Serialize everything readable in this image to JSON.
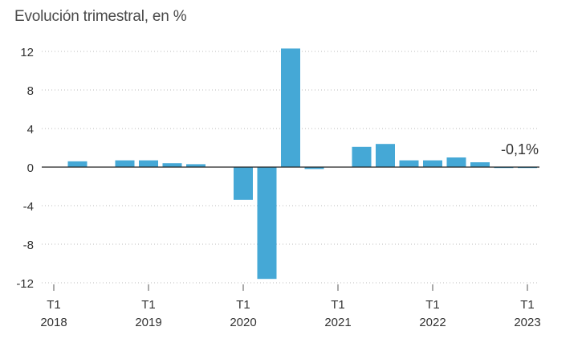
{
  "chart_data": {
    "type": "bar",
    "title": "Evolución trimestral, en %",
    "xlabel": "",
    "ylabel": "",
    "ylim": [
      -12,
      12
    ],
    "yticks": [
      12,
      8,
      4,
      0,
      -4,
      -8,
      -12
    ],
    "ytick_labels": [
      "12",
      "8",
      "4",
      "0",
      "-4",
      "-8",
      "-12"
    ],
    "categories": [
      "2018 T1",
      "2018 T2",
      "2018 T3",
      "2018 T4",
      "2019 T1",
      "2019 T2",
      "2019 T3",
      "2019 T4",
      "2020 T1",
      "2020 T2",
      "2020 T3",
      "2020 T4",
      "2021 T1",
      "2021 T2",
      "2021 T3",
      "2021 T4",
      "2022 T1",
      "2022 T2",
      "2022 T3",
      "2022 T4",
      "2023 T1"
    ],
    "values": [
      0,
      0.6,
      0,
      0.7,
      0.7,
      0.4,
      0.3,
      0,
      -3.4,
      -11.6,
      12.3,
      -0.2,
      0,
      2.1,
      2.4,
      0.7,
      0.7,
      1.0,
      0.5,
      -0.1,
      -0.1
    ],
    "x_tick_labels": [
      {
        "quarter": "T1",
        "year": "2018",
        "index": 0
      },
      {
        "quarter": "T1",
        "year": "2019",
        "index": 4
      },
      {
        "quarter": "T1",
        "year": "2020",
        "index": 8
      },
      {
        "quarter": "T1",
        "year": "2021",
        "index": 12
      },
      {
        "quarter": "T1",
        "year": "2022",
        "index": 16
      },
      {
        "quarter": "T1",
        "year": "2023",
        "index": 20
      }
    ],
    "annotation": {
      "text": "-0,1%",
      "index": 20
    },
    "grid": true,
    "colors": {
      "bar": "#45a8d6",
      "zero_line": "#222222",
      "grid": "#bbbbbb",
      "text": "#333333"
    }
  }
}
